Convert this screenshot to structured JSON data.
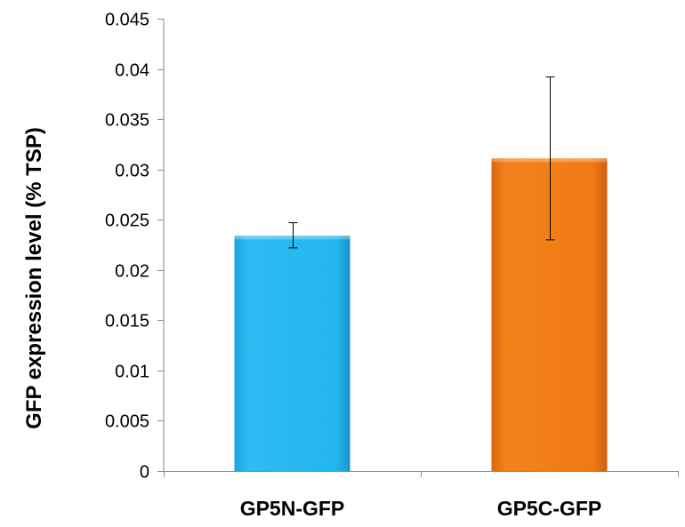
{
  "chart_data": {
    "type": "bar",
    "title": "",
    "xlabel": "",
    "ylabel": "GFP expression level (% TSP)",
    "categories": [
      "GP5N-GFP",
      "GP5C-GFP"
    ],
    "values": [
      0.0234,
      0.0311
    ],
    "error_bars": [
      {
        "low": 0.0222,
        "high": 0.0247
      },
      {
        "low": 0.023,
        "high": 0.0392
      }
    ],
    "colors": [
      "#1fb4ee",
      "#f07a14"
    ],
    "ylim": [
      0,
      0.045
    ],
    "yticks": [
      {
        "value": 0,
        "label": "0"
      },
      {
        "value": 0.005,
        "label": "0.005"
      },
      {
        "value": 0.01,
        "label": "0.01"
      },
      {
        "value": 0.015,
        "label": "0.015"
      },
      {
        "value": 0.02,
        "label": "0.02"
      },
      {
        "value": 0.025,
        "label": "0.025"
      },
      {
        "value": 0.03,
        "label": "0.03"
      },
      {
        "value": 0.035,
        "label": "0.035"
      },
      {
        "value": 0.04,
        "label": "0.04"
      },
      {
        "value": 0.045,
        "label": "0.045"
      }
    ],
    "grid": false,
    "legend": "none"
  }
}
